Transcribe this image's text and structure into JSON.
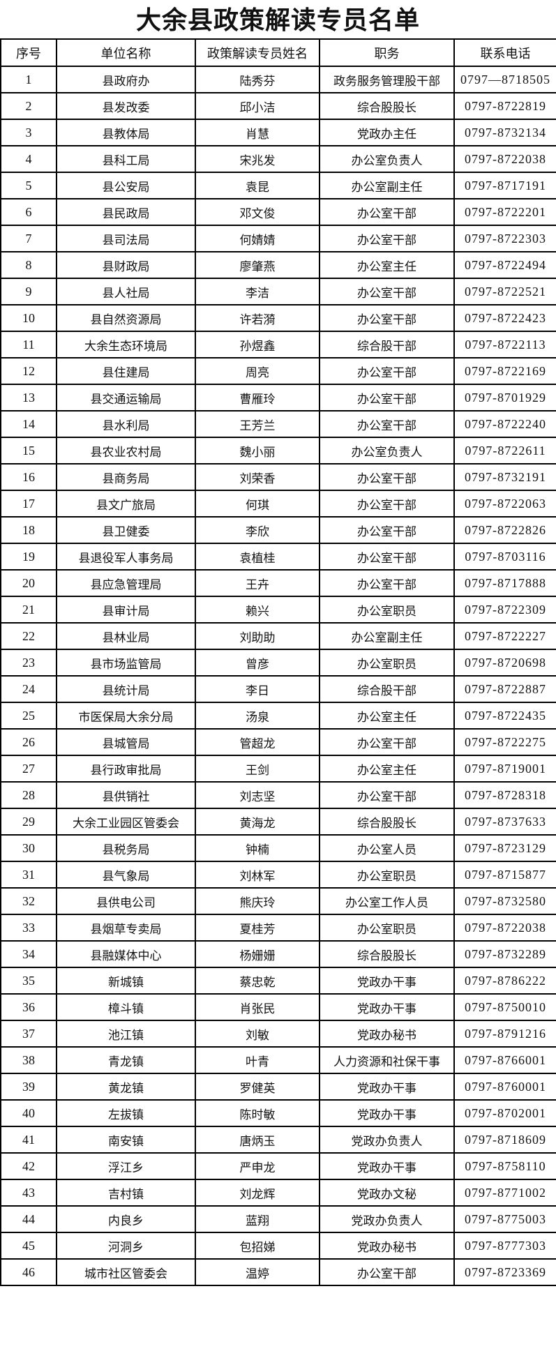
{
  "title": "大余县政策解读专员名单",
  "columns": [
    "序号",
    "单位名称",
    "政策解读专员姓名",
    "职务",
    "联系电话"
  ],
  "rows": [
    [
      "1",
      "县政府办",
      "陆秀芬",
      "政务服务管理股干部",
      "0797—8718505"
    ],
    [
      "2",
      "县发改委",
      "邱小洁",
      "综合股股长",
      "0797-8722819"
    ],
    [
      "3",
      "县教体局",
      "肖慧",
      "党政办主任",
      "0797-8732134"
    ],
    [
      "4",
      "县科工局",
      "宋兆发",
      "办公室负责人",
      "0797-8722038"
    ],
    [
      "5",
      "县公安局",
      "袁昆",
      "办公室副主任",
      "0797-8717191"
    ],
    [
      "6",
      "县民政局",
      "邓文俊",
      "办公室干部",
      "0797-8722201"
    ],
    [
      "7",
      "县司法局",
      "何婧婧",
      "办公室干部",
      "0797-8722303"
    ],
    [
      "8",
      "县财政局",
      "廖肇燕",
      "办公室主任",
      "0797-8722494"
    ],
    [
      "9",
      "县人社局",
      "李洁",
      "办公室干部",
      "0797-8722521"
    ],
    [
      "10",
      "县自然资源局",
      "许若漪",
      "办公室干部",
      "0797-8722423"
    ],
    [
      "11",
      "大余生态环境局",
      "孙煜鑫",
      "综合股干部",
      "0797-8722113"
    ],
    [
      "12",
      "县住建局",
      "周亮",
      "办公室干部",
      "0797-8722169"
    ],
    [
      "13",
      "县交通运输局",
      "曹雁玲",
      "办公室干部",
      "0797-8701929"
    ],
    [
      "14",
      "县水利局",
      "王芳兰",
      "办公室干部",
      "0797-8722240"
    ],
    [
      "15",
      "县农业农村局",
      "魏小丽",
      "办公室负责人",
      "0797-8722611"
    ],
    [
      "16",
      "县商务局",
      "刘荣香",
      "办公室干部",
      "0797-8732191"
    ],
    [
      "17",
      "县文广旅局",
      "何琪",
      "办公室干部",
      "0797-8722063"
    ],
    [
      "18",
      "县卫健委",
      "李欣",
      "办公室干部",
      "0797-8722826"
    ],
    [
      "19",
      "县退役军人事务局",
      "袁植桂",
      "办公室干部",
      "0797-8703116"
    ],
    [
      "20",
      "县应急管理局",
      "王卉",
      "办公室干部",
      "0797-8717888"
    ],
    [
      "21",
      "县审计局",
      "赖兴",
      "办公室职员",
      "0797-8722309"
    ],
    [
      "22",
      "县林业局",
      "刘助助",
      "办公室副主任",
      "0797-8722227"
    ],
    [
      "23",
      "县市场监管局",
      "曾彦",
      "办公室职员",
      "0797-8720698"
    ],
    [
      "24",
      "县统计局",
      "李日",
      "综合股干部",
      "0797-8722887"
    ],
    [
      "25",
      "市医保局大余分局",
      "汤泉",
      "办公室主任",
      "0797-8722435"
    ],
    [
      "26",
      "县城管局",
      "管超龙",
      "办公室干部",
      "0797-8722275"
    ],
    [
      "27",
      "县行政审批局",
      "王剑",
      "办公室主任",
      "0797-8719001"
    ],
    [
      "28",
      "县供销社",
      "刘志坚",
      "办公室干部",
      "0797-8728318"
    ],
    [
      "29",
      "大余工业园区管委会",
      "黄海龙",
      "综合股股长",
      "0797-8737633"
    ],
    [
      "30",
      "县税务局",
      "钟楠",
      "办公室人员",
      "0797-8723129"
    ],
    [
      "31",
      "县气象局",
      "刘林军",
      "办公室职员",
      "0797-8715877"
    ],
    [
      "32",
      "县供电公司",
      "熊庆玲",
      "办公室工作人员",
      "0797-8732580"
    ],
    [
      "33",
      "县烟草专卖局",
      "夏桂芳",
      "办公室职员",
      "0797-8722038"
    ],
    [
      "34",
      "县融媒体中心",
      "杨姗姗",
      "综合股股长",
      "0797-8732289"
    ],
    [
      "35",
      "新城镇",
      "蔡忠乾",
      "党政办干事",
      "0797-8786222"
    ],
    [
      "36",
      "樟斗镇",
      "肖张民",
      "党政办干事",
      "0797-8750010"
    ],
    [
      "37",
      "池江镇",
      "刘敏",
      "党政办秘书",
      "0797-8791216"
    ],
    [
      "38",
      "青龙镇",
      "叶青",
      "人力资源和社保干事",
      "0797-8766001"
    ],
    [
      "39",
      "黄龙镇",
      "罗健英",
      "党政办干事",
      "0797-8760001"
    ],
    [
      "40",
      "左拔镇",
      "陈时敏",
      "党政办干事",
      "0797-8702001"
    ],
    [
      "41",
      "南安镇",
      "唐炳玉",
      "党政办负责人",
      "0797-8718609"
    ],
    [
      "42",
      "浮江乡",
      "严申龙",
      "党政办干事",
      "0797-8758110"
    ],
    [
      "43",
      "吉村镇",
      "刘龙辉",
      "党政办文秘",
      "0797-8771002"
    ],
    [
      "44",
      "内良乡",
      "蓝翔",
      "党政办负责人",
      "0797-8775003"
    ],
    [
      "45",
      "河洞乡",
      "包招娣",
      "党政办秘书",
      "0797-8777303"
    ],
    [
      "46",
      "城市社区管委会",
      "温婷",
      "办公室干部",
      "0797-8723369"
    ]
  ]
}
